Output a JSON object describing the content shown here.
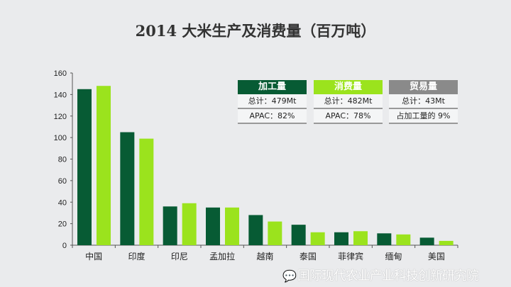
{
  "chart_data": {
    "type": "bar",
    "title": "2014 大米生产及消费量（百万吨）",
    "categories": [
      "中国",
      "印度",
      "印尼",
      "孟加拉",
      "越南",
      "泰国",
      "菲律宾",
      "缅甸",
      "美国"
    ],
    "series": [
      {
        "name": "加工量",
        "color": "#075b34",
        "values": [
          145,
          105,
          36,
          35,
          28,
          19,
          12,
          11,
          7
        ]
      },
      {
        "name": "消费量",
        "color": "#9be31d",
        "values": [
          148,
          99,
          39,
          35,
          22,
          12,
          13,
          10,
          4
        ]
      }
    ],
    "ylim": [
      0,
      160
    ],
    "yticks": [
      0,
      20,
      40,
      60,
      80,
      100,
      120,
      140,
      160
    ],
    "xlabel": "",
    "ylabel": "",
    "grid": false
  },
  "legend_boxes": [
    {
      "header": "加工量",
      "color": "#075b34",
      "line1": "总计：479Mt",
      "line2": "APAC：82%"
    },
    {
      "header": "消费量",
      "color": "#9be31d",
      "line1": "总计：482Mt",
      "line2": "APAC：78%"
    },
    {
      "header": "贸易量",
      "color": "#8a8a8a",
      "line1": "总计：43Mt",
      "line2": "占加工量的 9%"
    }
  ],
  "watermark": "国际现代农业产业科技创新研究院"
}
